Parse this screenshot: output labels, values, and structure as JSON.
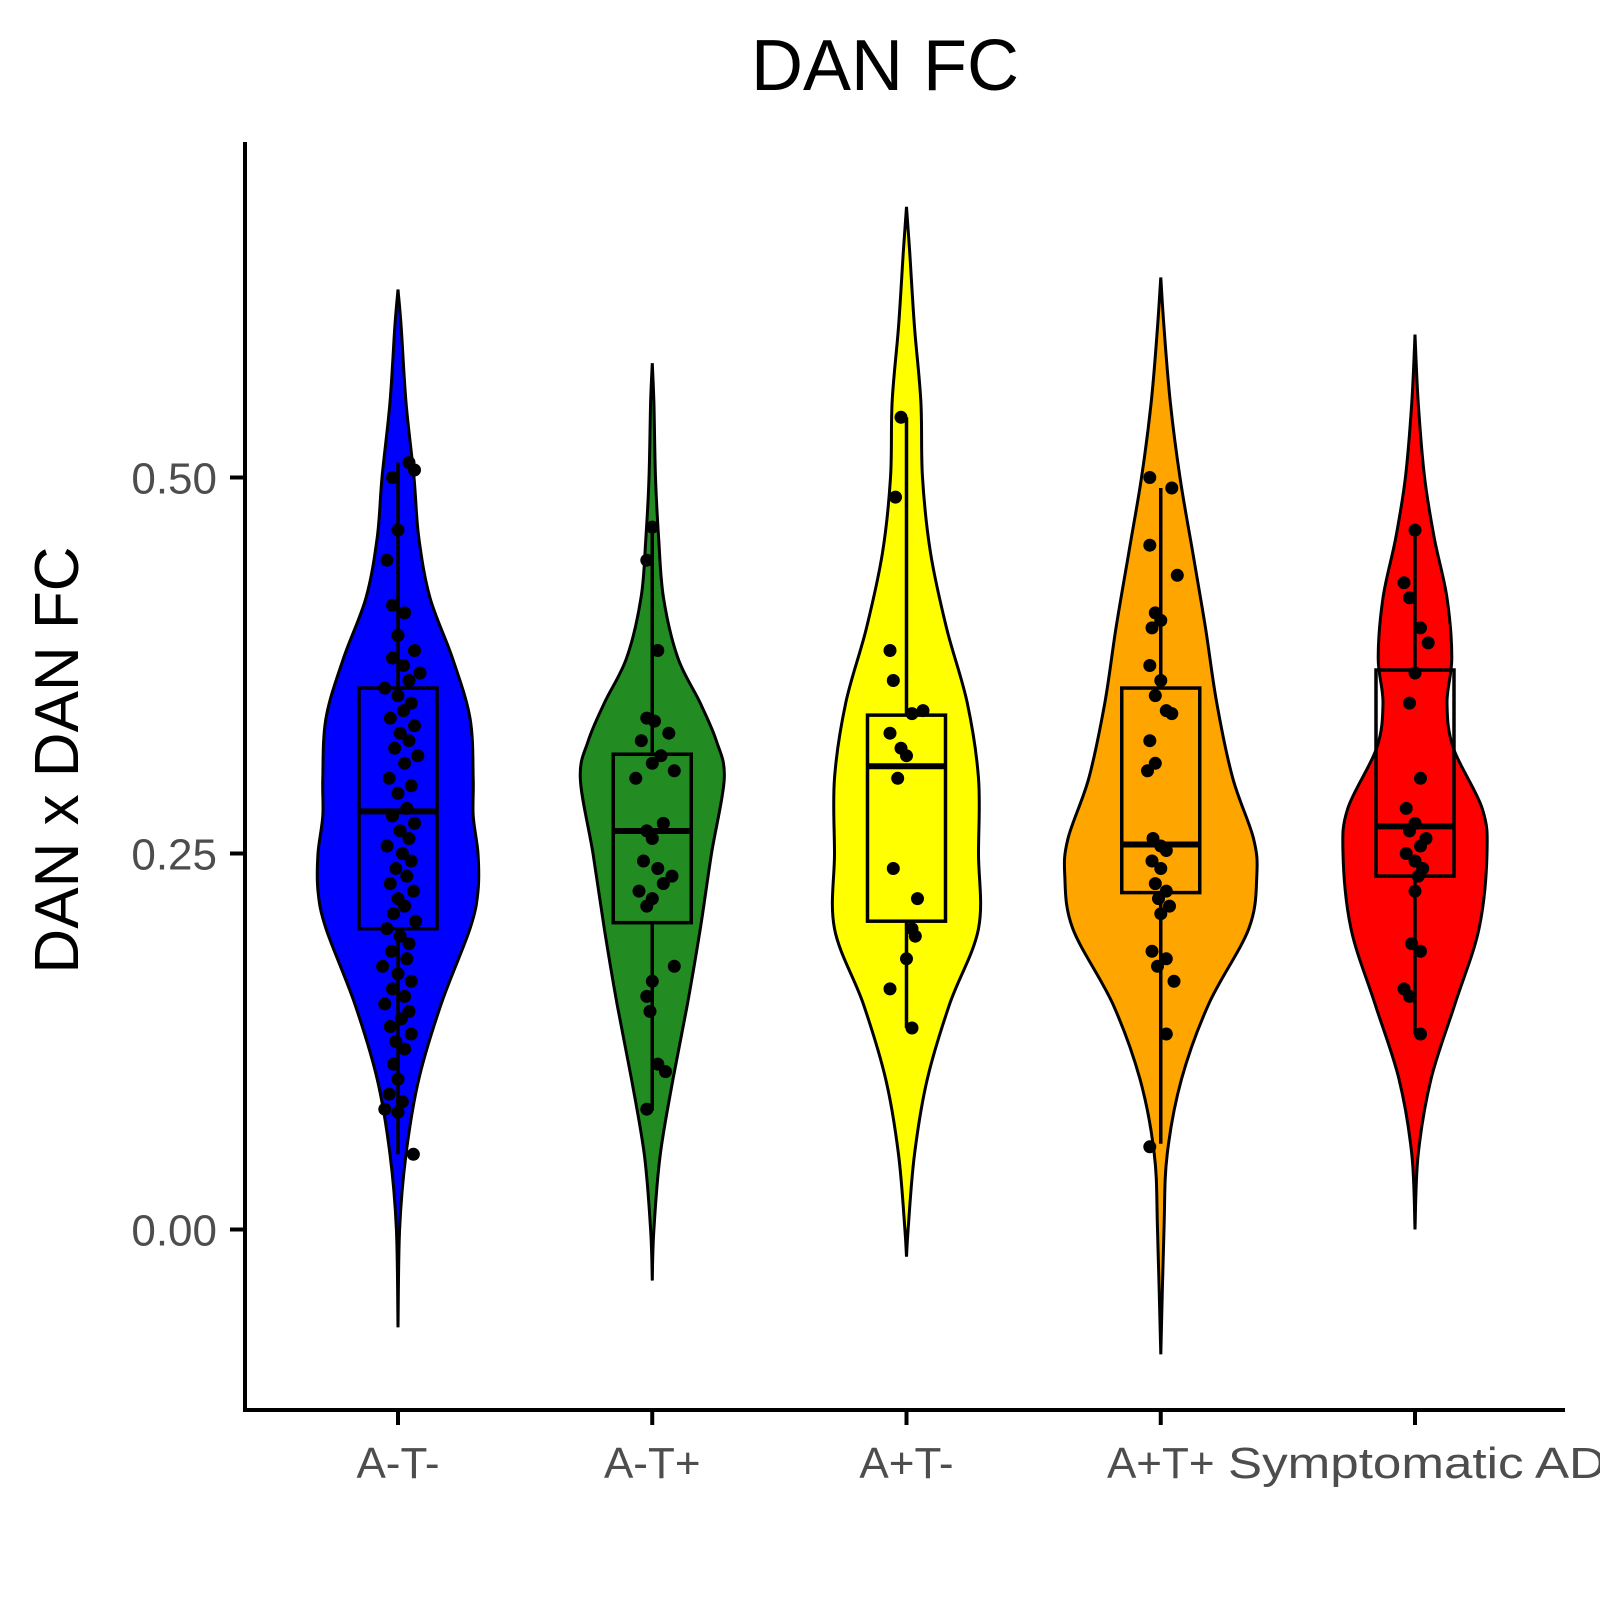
{
  "chart_data": {
    "type": "violin",
    "title": "DAN FC",
    "xlabel": "",
    "ylabel": "DAN x DAN FC",
    "ylim": [
      -0.12,
      0.72
    ],
    "yticks": [
      0.0,
      0.25,
      0.5
    ],
    "ytick_labels": [
      "0.00",
      "0.25",
      "0.50"
    ],
    "grid": false,
    "legend": "none",
    "categories": [
      "A-T-",
      "A-T+",
      "A+T-",
      "A+T+",
      "Symptomatic AD"
    ],
    "groups": [
      {
        "name": "A-T-",
        "color": "#0000ff",
        "violin_range": [
          -0.065,
          0.625
        ],
        "density": [
          [
            -0.065,
            0.0
          ],
          [
            0.0,
            0.01
          ],
          [
            0.05,
            0.05
          ],
          [
            0.1,
            0.13
          ],
          [
            0.15,
            0.27
          ],
          [
            0.2,
            0.45
          ],
          [
            0.225,
            0.5
          ],
          [
            0.25,
            0.5
          ],
          [
            0.275,
            0.47
          ],
          [
            0.3,
            0.47
          ],
          [
            0.34,
            0.45
          ],
          [
            0.38,
            0.34
          ],
          [
            0.42,
            0.2
          ],
          [
            0.46,
            0.13
          ],
          [
            0.5,
            0.1
          ],
          [
            0.55,
            0.05
          ],
          [
            0.6,
            0.02
          ],
          [
            0.625,
            0.0
          ]
        ],
        "box": {
          "q1": 0.2,
          "median": 0.278,
          "q3": 0.36,
          "whisker_low": 0.05,
          "whisker_high": 0.51
        },
        "points": [
          [
            0.5,
            -0.05
          ],
          [
            0.51,
            0.1
          ],
          [
            0.505,
            0.15
          ],
          [
            0.465,
            0.0
          ],
          [
            0.445,
            -0.1
          ],
          [
            0.415,
            -0.05
          ],
          [
            0.41,
            0.06
          ],
          [
            0.395,
            0.0
          ],
          [
            0.385,
            0.15
          ],
          [
            0.38,
            -0.05
          ],
          [
            0.375,
            0.05
          ],
          [
            0.37,
            0.2
          ],
          [
            0.365,
            0.1
          ],
          [
            0.36,
            -0.12
          ],
          [
            0.355,
            0.0
          ],
          [
            0.35,
            0.12
          ],
          [
            0.345,
            0.05
          ],
          [
            0.34,
            -0.07
          ],
          [
            0.335,
            0.15
          ],
          [
            0.33,
            0.02
          ],
          [
            0.325,
            0.1
          ],
          [
            0.32,
            -0.03
          ],
          [
            0.315,
            0.18
          ],
          [
            0.31,
            0.06
          ],
          [
            0.3,
            -0.08
          ],
          [
            0.295,
            0.12
          ],
          [
            0.29,
            0.0
          ],
          [
            0.28,
            0.08
          ],
          [
            0.275,
            -0.05
          ],
          [
            0.27,
            0.15
          ],
          [
            0.265,
            0.02
          ],
          [
            0.26,
            0.1
          ],
          [
            0.255,
            -0.1
          ],
          [
            0.25,
            0.04
          ],
          [
            0.245,
            0.12
          ],
          [
            0.24,
            -0.02
          ],
          [
            0.235,
            0.08
          ],
          [
            0.23,
            -0.07
          ],
          [
            0.225,
            0.14
          ],
          [
            0.22,
            0.0
          ],
          [
            0.215,
            0.06
          ],
          [
            0.21,
            -0.04
          ],
          [
            0.205,
            0.16
          ],
          [
            0.2,
            -0.1
          ],
          [
            0.195,
            0.02
          ],
          [
            0.19,
            0.1
          ],
          [
            0.185,
            -0.06
          ],
          [
            0.18,
            0.08
          ],
          [
            0.175,
            -0.14
          ],
          [
            0.17,
            0.0
          ],
          [
            0.165,
            0.12
          ],
          [
            0.16,
            -0.05
          ],
          [
            0.155,
            0.06
          ],
          [
            0.15,
            -0.12
          ],
          [
            0.145,
            0.1
          ],
          [
            0.14,
            0.03
          ],
          [
            0.135,
            -0.07
          ],
          [
            0.13,
            0.12
          ],
          [
            0.125,
            -0.02
          ],
          [
            0.12,
            0.06
          ],
          [
            0.11,
            -0.04
          ],
          [
            0.1,
            0.0
          ],
          [
            0.09,
            -0.08
          ],
          [
            0.085,
            0.04
          ],
          [
            0.08,
            -0.12
          ],
          [
            0.078,
            0.0
          ],
          [
            0.05,
            0.14
          ]
        ]
      },
      {
        "name": "A-T+",
        "color": "#228b22",
        "violin_range": [
          -0.034,
          0.576
        ],
        "density": [
          [
            -0.034,
            0.0
          ],
          [
            0.0,
            0.01
          ],
          [
            0.05,
            0.05
          ],
          [
            0.1,
            0.13
          ],
          [
            0.15,
            0.22
          ],
          [
            0.2,
            0.3
          ],
          [
            0.25,
            0.37
          ],
          [
            0.3,
            0.45
          ],
          [
            0.325,
            0.4
          ],
          [
            0.35,
            0.3
          ],
          [
            0.38,
            0.16
          ],
          [
            0.42,
            0.07
          ],
          [
            0.46,
            0.04
          ],
          [
            0.5,
            0.02
          ],
          [
            0.55,
            0.01
          ],
          [
            0.576,
            0.0
          ]
        ],
        "box": {
          "q1": 0.204,
          "median": 0.265,
          "q3": 0.316,
          "whisker_low": 0.079,
          "whisker_high": 0.467
        },
        "points": [
          [
            0.467,
            0.0
          ],
          [
            0.445,
            -0.05
          ],
          [
            0.385,
            0.05
          ],
          [
            0.34,
            -0.05
          ],
          [
            0.338,
            0.02
          ],
          [
            0.33,
            0.15
          ],
          [
            0.325,
            -0.1
          ],
          [
            0.315,
            0.08
          ],
          [
            0.31,
            0.0
          ],
          [
            0.305,
            0.2
          ],
          [
            0.3,
            -0.15
          ],
          [
            0.27,
            0.1
          ],
          [
            0.265,
            -0.05
          ],
          [
            0.26,
            0.0
          ],
          [
            0.245,
            -0.08
          ],
          [
            0.24,
            0.05
          ],
          [
            0.235,
            0.18
          ],
          [
            0.23,
            0.1
          ],
          [
            0.225,
            -0.12
          ],
          [
            0.22,
            0.0
          ],
          [
            0.215,
            -0.05
          ],
          [
            0.175,
            0.2
          ],
          [
            0.165,
            0.0
          ],
          [
            0.155,
            -0.05
          ],
          [
            0.145,
            -0.02
          ],
          [
            0.11,
            0.05
          ],
          [
            0.105,
            0.12
          ],
          [
            0.08,
            -0.05
          ]
        ]
      },
      {
        "name": "A+T-",
        "color": "#ffff00",
        "violin_range": [
          -0.018,
          0.68
        ],
        "density": [
          [
            -0.018,
            0.0
          ],
          [
            0.0,
            0.01
          ],
          [
            0.05,
            0.05
          ],
          [
            0.1,
            0.13
          ],
          [
            0.15,
            0.27
          ],
          [
            0.2,
            0.45
          ],
          [
            0.25,
            0.45
          ],
          [
            0.3,
            0.45
          ],
          [
            0.35,
            0.38
          ],
          [
            0.4,
            0.25
          ],
          [
            0.45,
            0.15
          ],
          [
            0.5,
            0.1
          ],
          [
            0.55,
            0.09
          ],
          [
            0.6,
            0.05
          ],
          [
            0.65,
            0.02
          ],
          [
            0.68,
            0.0
          ]
        ],
        "box": {
          "q1": 0.205,
          "median": 0.308,
          "q3": 0.342,
          "whisker_low": 0.134,
          "whisker_high": 0.54
        },
        "points": [
          [
            0.54,
            -0.05
          ],
          [
            0.487,
            -0.1
          ],
          [
            0.385,
            -0.15
          ],
          [
            0.365,
            -0.12
          ],
          [
            0.345,
            0.15
          ],
          [
            0.343,
            0.05
          ],
          [
            0.33,
            -0.15
          ],
          [
            0.32,
            -0.05
          ],
          [
            0.315,
            0.0
          ],
          [
            0.3,
            -0.08
          ],
          [
            0.24,
            -0.12
          ],
          [
            0.22,
            0.1
          ],
          [
            0.2,
            0.05
          ],
          [
            0.195,
            0.08
          ],
          [
            0.18,
            0.0
          ],
          [
            0.16,
            -0.15
          ],
          [
            0.134,
            0.05
          ]
        ]
      },
      {
        "name": "A+T+",
        "color": "#ffa500",
        "violin_range": [
          -0.083,
          0.633
        ],
        "density": [
          [
            -0.083,
            0.0
          ],
          [
            0.0,
            0.02
          ],
          [
            0.05,
            0.04
          ],
          [
            0.1,
            0.13
          ],
          [
            0.15,
            0.3
          ],
          [
            0.2,
            0.55
          ],
          [
            0.235,
            0.6
          ],
          [
            0.26,
            0.58
          ],
          [
            0.3,
            0.45
          ],
          [
            0.35,
            0.35
          ],
          [
            0.4,
            0.28
          ],
          [
            0.45,
            0.2
          ],
          [
            0.5,
            0.12
          ],
          [
            0.55,
            0.06
          ],
          [
            0.6,
            0.02
          ],
          [
            0.633,
            0.0
          ]
        ],
        "box": {
          "q1": 0.224,
          "median": 0.256,
          "q3": 0.36,
          "whisker_low": 0.057,
          "whisker_high": 0.493
        },
        "points": [
          [
            0.5,
            -0.1
          ],
          [
            0.493,
            0.1
          ],
          [
            0.455,
            -0.1
          ],
          [
            0.435,
            0.15
          ],
          [
            0.41,
            -0.05
          ],
          [
            0.405,
            0.0
          ],
          [
            0.4,
            -0.08
          ],
          [
            0.375,
            -0.1
          ],
          [
            0.365,
            0.0
          ],
          [
            0.355,
            -0.05
          ],
          [
            0.345,
            0.05
          ],
          [
            0.343,
            0.1
          ],
          [
            0.325,
            -0.1
          ],
          [
            0.31,
            -0.05
          ],
          [
            0.305,
            -0.12
          ],
          [
            0.26,
            -0.07
          ],
          [
            0.255,
            0.0
          ],
          [
            0.252,
            0.05
          ],
          [
            0.245,
            -0.08
          ],
          [
            0.24,
            0.0
          ],
          [
            0.23,
            -0.05
          ],
          [
            0.225,
            0.05
          ],
          [
            0.22,
            -0.02
          ],
          [
            0.215,
            0.08
          ],
          [
            0.21,
            0.0
          ],
          [
            0.185,
            -0.08
          ],
          [
            0.18,
            0.05
          ],
          [
            0.175,
            -0.03
          ],
          [
            0.165,
            0.12
          ],
          [
            0.13,
            0.05
          ],
          [
            0.055,
            -0.1
          ]
        ]
      },
      {
        "name": "Symptomatic AD",
        "color": "#ff0000",
        "violin_range": [
          0.0,
          0.595
        ],
        "density": [
          [
            0.0,
            0.0
          ],
          [
            0.05,
            0.02
          ],
          [
            0.1,
            0.1
          ],
          [
            0.15,
            0.25
          ],
          [
            0.2,
            0.4
          ],
          [
            0.25,
            0.45
          ],
          [
            0.28,
            0.42
          ],
          [
            0.32,
            0.24
          ],
          [
            0.35,
            0.2
          ],
          [
            0.38,
            0.23
          ],
          [
            0.42,
            0.2
          ],
          [
            0.46,
            0.12
          ],
          [
            0.5,
            0.06
          ],
          [
            0.55,
            0.02
          ],
          [
            0.595,
            0.0
          ]
        ],
        "box": {
          "q1": 0.235,
          "median": 0.268,
          "q3": 0.372,
          "whisker_low": 0.13,
          "whisker_high": 0.465
        },
        "points": [
          [
            0.465,
            0.0
          ],
          [
            0.43,
            -0.1
          ],
          [
            0.42,
            -0.05
          ],
          [
            0.4,
            0.05
          ],
          [
            0.39,
            0.12
          ],
          [
            0.37,
            0.0
          ],
          [
            0.35,
            -0.05
          ],
          [
            0.3,
            0.05
          ],
          [
            0.28,
            -0.08
          ],
          [
            0.27,
            0.0
          ],
          [
            0.265,
            -0.05
          ],
          [
            0.26,
            0.1
          ],
          [
            0.255,
            0.05
          ],
          [
            0.25,
            -0.08
          ],
          [
            0.245,
            0.0
          ],
          [
            0.24,
            0.07
          ],
          [
            0.235,
            0.03
          ],
          [
            0.225,
            0.0
          ],
          [
            0.19,
            -0.03
          ],
          [
            0.185,
            0.05
          ],
          [
            0.16,
            -0.1
          ],
          [
            0.155,
            -0.05
          ],
          [
            0.13,
            0.05
          ]
        ]
      }
    ]
  }
}
